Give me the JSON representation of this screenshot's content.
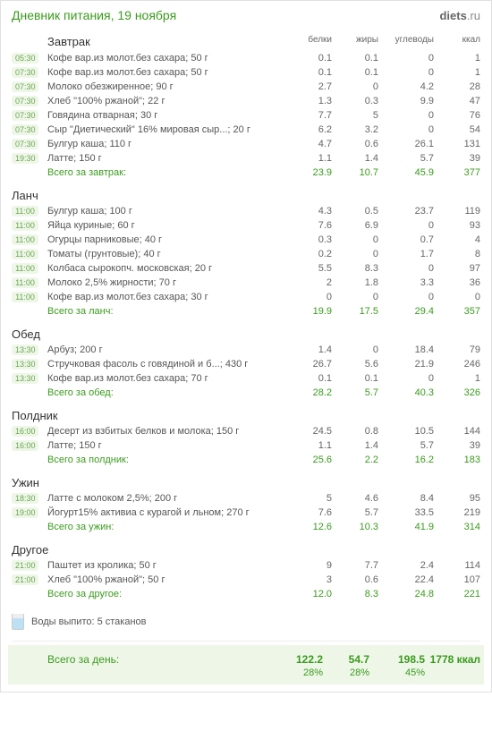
{
  "header": {
    "title": "Дневник питания, 19 ноября",
    "logo_bold": "diets",
    "logo_rest": ".ru"
  },
  "columns": [
    "белки",
    "жиры",
    "углеводы",
    "ккал"
  ],
  "meals": [
    {
      "name": "Завтрак",
      "items": [
        {
          "t": "05:30",
          "n": "Кофе вар.из молот.без сахара; 50 г",
          "p": "0.1",
          "f": "0.1",
          "c": "0",
          "k": "1"
        },
        {
          "t": "07:30",
          "n": "Кофе вар.из молот.без сахара; 50 г",
          "p": "0.1",
          "f": "0.1",
          "c": "0",
          "k": "1"
        },
        {
          "t": "07:30",
          "n": "Молоко обезжиренное; 90 г",
          "p": "2.7",
          "f": "0",
          "c": "4.2",
          "k": "28"
        },
        {
          "t": "07:30",
          "n": "Хлеб \"100% ржаной\"; 22 г",
          "p": "1.3",
          "f": "0.3",
          "c": "9.9",
          "k": "47"
        },
        {
          "t": "07:30",
          "n": "Говядина отварная; 30 г",
          "p": "7.7",
          "f": "5",
          "c": "0",
          "k": "76"
        },
        {
          "t": "07:30",
          "n": "Сыр \"Диетический\" 16% мировая сыр...; 20 г",
          "p": "6.2",
          "f": "3.2",
          "c": "0",
          "k": "54"
        },
        {
          "t": "07:30",
          "n": "Булгур каша; 110 г",
          "p": "4.7",
          "f": "0.6",
          "c": "26.1",
          "k": "131"
        },
        {
          "t": "19:30",
          "n": "Латте; 150 г",
          "p": "1.1",
          "f": "1.4",
          "c": "5.7",
          "k": "39"
        }
      ],
      "total_label": "Всего за завтрак:",
      "total": {
        "p": "23.9",
        "f": "10.7",
        "c": "45.9",
        "k": "377"
      }
    },
    {
      "name": "Ланч",
      "items": [
        {
          "t": "11:00",
          "n": "Булгур каша; 100 г",
          "p": "4.3",
          "f": "0.5",
          "c": "23.7",
          "k": "119"
        },
        {
          "t": "11:00",
          "n": "Яйца куриные; 60 г",
          "p": "7.6",
          "f": "6.9",
          "c": "0",
          "k": "93"
        },
        {
          "t": "11:00",
          "n": "Огурцы парниковые; 40 г",
          "p": "0.3",
          "f": "0",
          "c": "0.7",
          "k": "4"
        },
        {
          "t": "11:00",
          "n": "Томаты (грунтовые); 40 г",
          "p": "0.2",
          "f": "0",
          "c": "1.7",
          "k": "8"
        },
        {
          "t": "11:00",
          "n": "Колбаса сырокопч. московская; 20 г",
          "p": "5.5",
          "f": "8.3",
          "c": "0",
          "k": "97"
        },
        {
          "t": "11:00",
          "n": "Молоко 2,5% жирности; 70 г",
          "p": "2",
          "f": "1.8",
          "c": "3.3",
          "k": "36"
        },
        {
          "t": "11:00",
          "n": "Кофе вар.из молот.без сахара; 30 г",
          "p": "0",
          "f": "0",
          "c": "0",
          "k": "0"
        }
      ],
      "total_label": "Всего за ланч:",
      "total": {
        "p": "19.9",
        "f": "17.5",
        "c": "29.4",
        "k": "357"
      }
    },
    {
      "name": "Обед",
      "items": [
        {
          "t": "13:30",
          "n": "Арбуз; 200 г",
          "p": "1.4",
          "f": "0",
          "c": "18.4",
          "k": "79"
        },
        {
          "t": "13:30",
          "n": "Стручковая фасоль с говядиной и б...; 430 г",
          "p": "26.7",
          "f": "5.6",
          "c": "21.9",
          "k": "246"
        },
        {
          "t": "13:30",
          "n": "Кофе вар.из молот.без сахара; 70 г",
          "p": "0.1",
          "f": "0.1",
          "c": "0",
          "k": "1"
        }
      ],
      "total_label": "Всего за обед:",
      "total": {
        "p": "28.2",
        "f": "5.7",
        "c": "40.3",
        "k": "326"
      }
    },
    {
      "name": "Полдник",
      "items": [
        {
          "t": "16:00",
          "n": "Десерт из взбитых белков и молока; 150 г",
          "p": "24.5",
          "f": "0.8",
          "c": "10.5",
          "k": "144"
        },
        {
          "t": "16:00",
          "n": "Латте; 150 г",
          "p": "1.1",
          "f": "1.4",
          "c": "5.7",
          "k": "39"
        }
      ],
      "total_label": "Всего за полдник:",
      "total": {
        "p": "25.6",
        "f": "2.2",
        "c": "16.2",
        "k": "183"
      }
    },
    {
      "name": "Ужин",
      "items": [
        {
          "t": "18:30",
          "n": "Латте с молоком 2,5%; 200 г",
          "p": "5",
          "f": "4.6",
          "c": "8.4",
          "k": "95"
        },
        {
          "t": "19:00",
          "n": "Йогурт15% активиа с курагой и льном; 270 г",
          "p": "7.6",
          "f": "5.7",
          "c": "33.5",
          "k": "219"
        }
      ],
      "total_label": "Всего за ужин:",
      "total": {
        "p": "12.6",
        "f": "10.3",
        "c": "41.9",
        "k": "314"
      }
    },
    {
      "name": "Другое",
      "items": [
        {
          "t": "21:00",
          "n": "Паштет из кролика; 50 г",
          "p": "9",
          "f": "7.7",
          "c": "2.4",
          "k": "114"
        },
        {
          "t": "21:00",
          "n": "Хлеб \"100% ржаной\"; 50 г",
          "p": "3",
          "f": "0.6",
          "c": "22.4",
          "k": "107"
        }
      ],
      "total_label": "Всего за другое:",
      "total": {
        "p": "12.0",
        "f": "8.3",
        "c": "24.8",
        "k": "221"
      }
    }
  ],
  "water": {
    "label": "Воды выпито: 5 стаканов"
  },
  "day": {
    "label": "Всего за день:",
    "p": "122.2",
    "f": "54.7",
    "c": "198.5",
    "k": "1778 ккал",
    "pp": "28%",
    "fp": "28%",
    "cp": "45%"
  }
}
